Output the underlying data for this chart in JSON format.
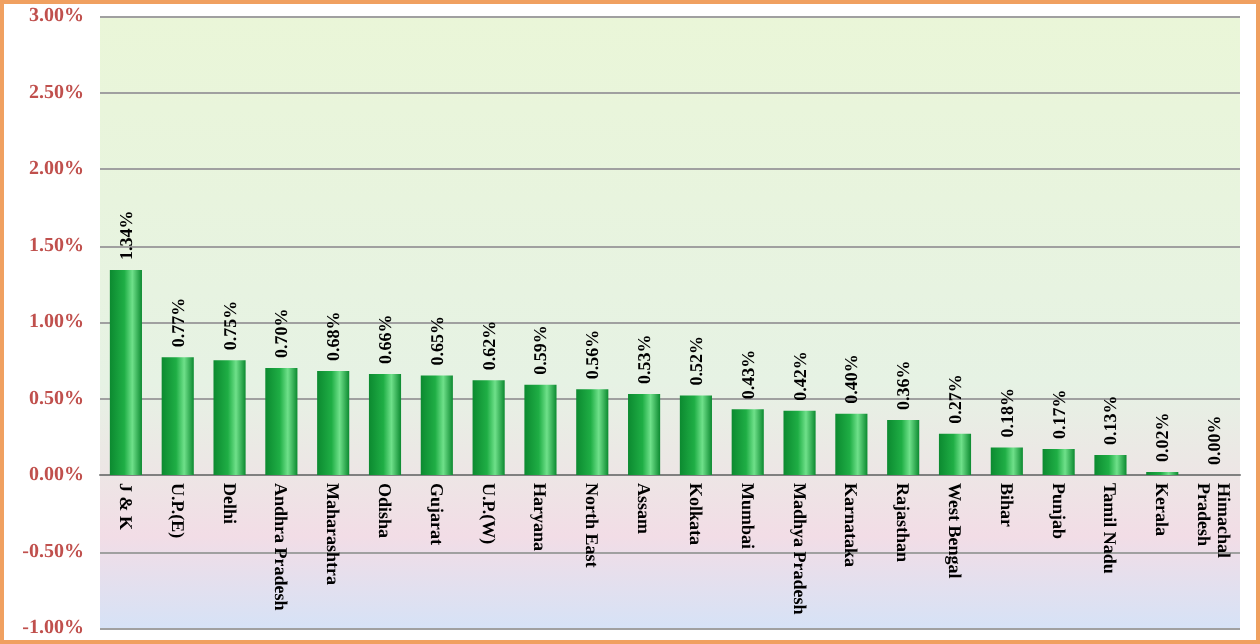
{
  "chart_data": {
    "type": "bar",
    "categories": [
      "J & K",
      "U.P.(E)",
      "Delhi",
      "Andhra Pradesh",
      "Maharashtra",
      "Odisha",
      "Gujarat",
      "U.P.(W)",
      "Haryana",
      "North East",
      "Assam",
      "Kolkata",
      "Mumbai",
      "Madhya Pradesh",
      "Karnataka",
      "Rajasthan",
      "West Bengal",
      "Bihar",
      "Punjab",
      "Tamil Nadu",
      "Kerala",
      "Himachal Pradesh"
    ],
    "values": [
      1.34,
      0.77,
      0.75,
      0.7,
      0.68,
      0.66,
      0.65,
      0.62,
      0.59,
      0.56,
      0.53,
      0.52,
      0.43,
      0.42,
      0.4,
      0.36,
      0.27,
      0.18,
      0.17,
      0.13,
      0.02,
      0.0
    ],
    "value_labels": [
      "1.34%",
      "0.77%",
      "0.75%",
      "0.70%",
      "0.68%",
      "0.66%",
      "0.65%",
      "0.62%",
      "0.59%",
      "0.56%",
      "0.53%",
      "0.52%",
      "0.43%",
      "0.42%",
      "0.40%",
      "0.36%",
      "0.27%",
      "0.18%",
      "0.17%",
      "0.13%",
      "0.02%",
      "0.00%"
    ],
    "color": "#1fae45",
    "ylim": [
      -1,
      3
    ],
    "yticks": [
      {
        "value": -1,
        "label": "-1.00%"
      },
      {
        "value": -0.5,
        "label": "-0.50%"
      },
      {
        "value": 0,
        "label": "0.00%"
      },
      {
        "value": 0.5,
        "label": "0.50%"
      },
      {
        "value": 1,
        "label": "1.00%"
      },
      {
        "value": 1.5,
        "label": "1.50%"
      },
      {
        "value": 2,
        "label": "2.00%"
      },
      {
        "value": 2.5,
        "label": "2.50%"
      },
      {
        "value": 3,
        "label": "3.00%"
      }
    ],
    "grid": "y"
  }
}
